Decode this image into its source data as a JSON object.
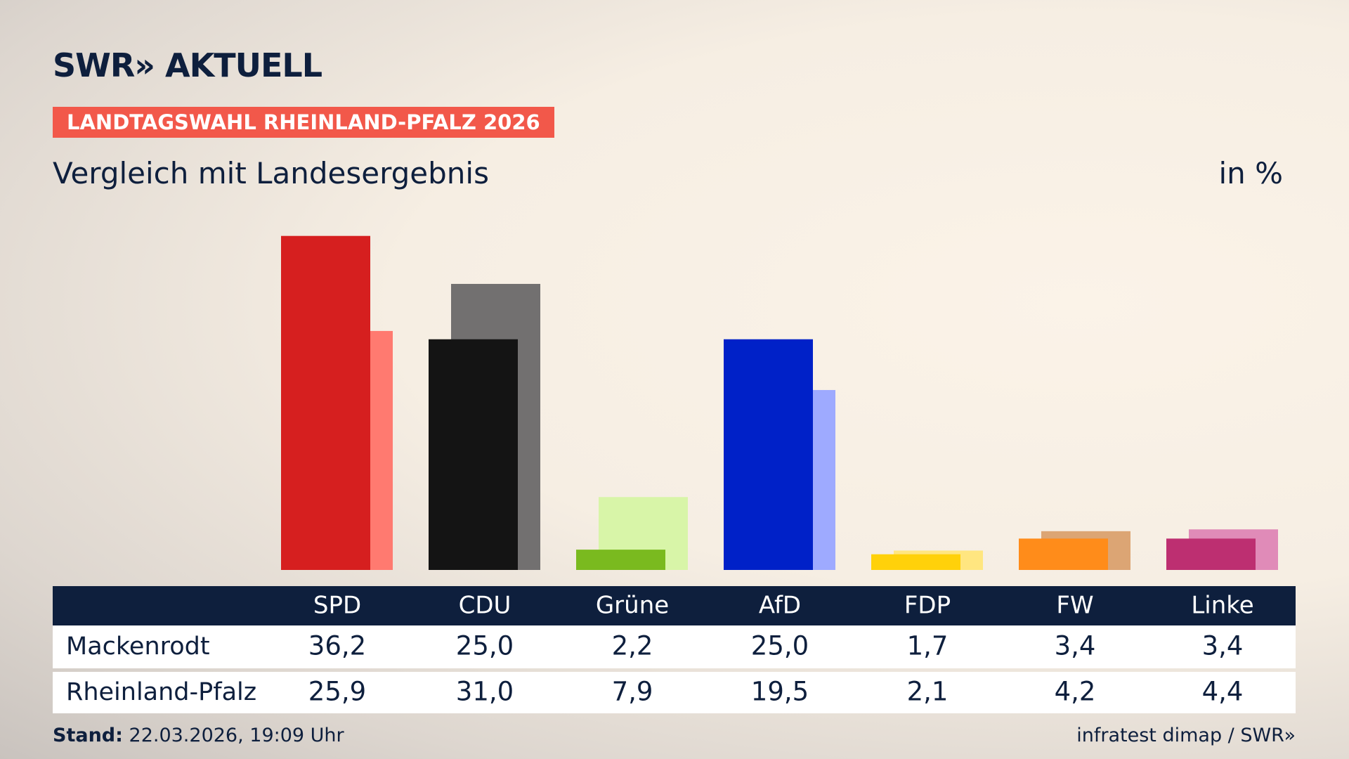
{
  "logo": "SWR» AKTUELL",
  "banner": "LANDTAGSWAHL RHEINLAND-PFALZ 2026",
  "subtitle": "Vergleich mit Landesergebnis",
  "unit": "in %",
  "footer": {
    "stand_label": "Stand:",
    "stand_value": "22.03.2026, 19:09 Uhr",
    "source": "infratest dimap / SWR»"
  },
  "chart_data": {
    "type": "bar",
    "categories": [
      "SPD",
      "CDU",
      "Grüne",
      "AfD",
      "FDP",
      "FW",
      "Linke"
    ],
    "series": [
      {
        "name": "Mackenrodt",
        "colors": [
          "#d61f1f",
          "#141414",
          "#7aba1f",
          "#0021c8",
          "#ffd10a",
          "#ff8c1a",
          "#bd2f71"
        ],
        "values": [
          36.2,
          25.0,
          2.2,
          25.0,
          1.7,
          3.4,
          3.4
        ],
        "value_labels": [
          "36,2",
          "25,0",
          "2,2",
          "25,0",
          "1,7",
          "3,4",
          "3,4"
        ]
      },
      {
        "name": "Rheinland-Pfalz",
        "colors": [
          "#ff7a70",
          "#727070",
          "#d8f5a8",
          "#9eaaff",
          "#ffe680",
          "#dca574",
          "#e08bb8"
        ],
        "values": [
          25.9,
          31.0,
          7.9,
          19.5,
          2.1,
          4.2,
          4.4
        ],
        "value_labels": [
          "25,9",
          "31,0",
          "7,9",
          "19,5",
          "2,1",
          "4,2",
          "4,4"
        ]
      }
    ]
  }
}
